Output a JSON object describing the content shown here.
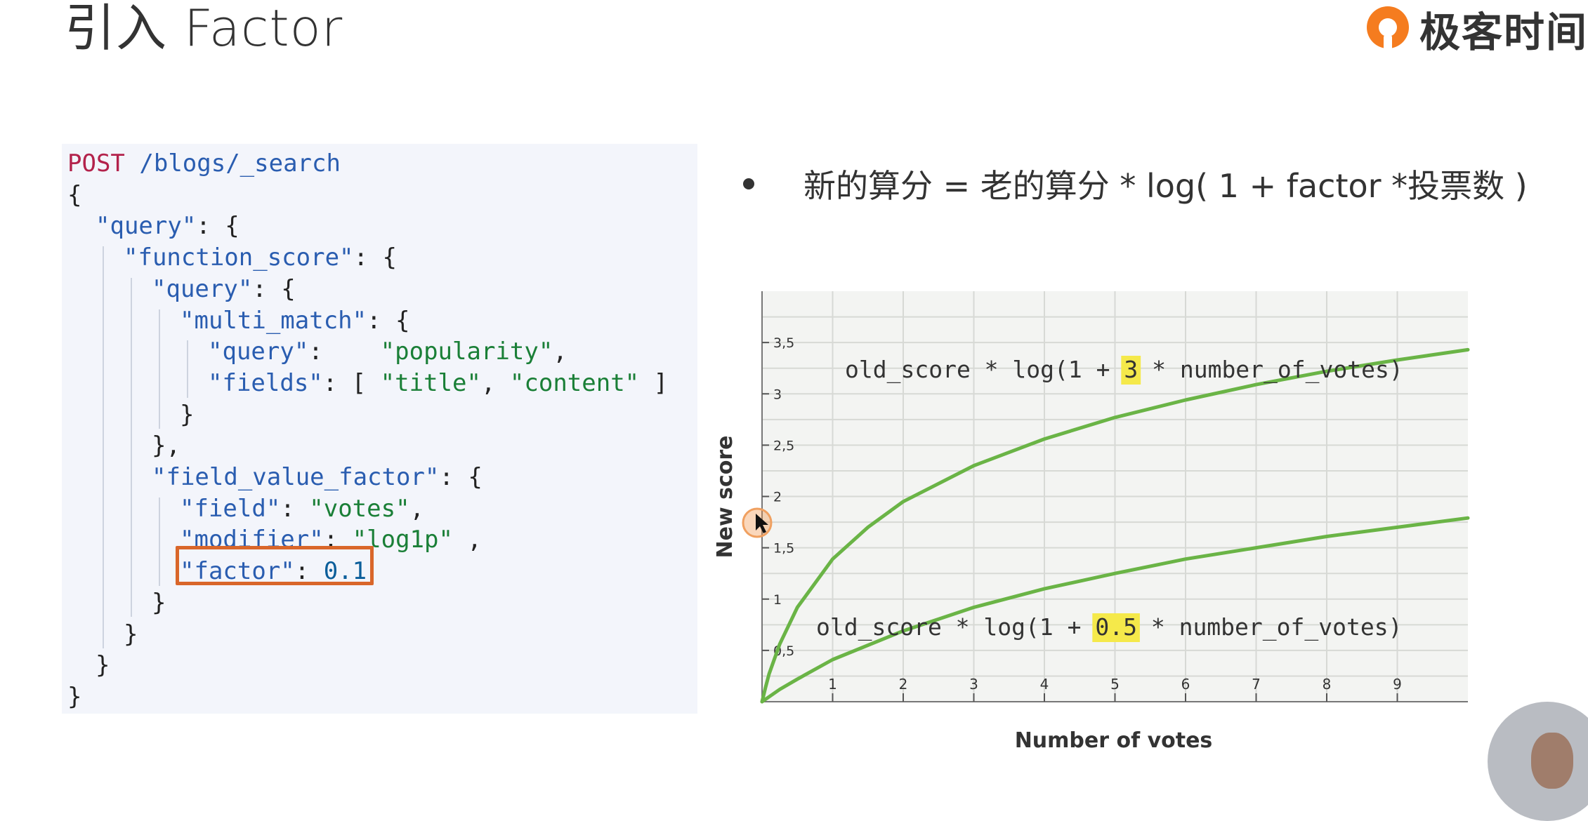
{
  "slide": {
    "title": "引入 Factor"
  },
  "brand": {
    "name": "极客时间",
    "logo_icon": "geektime-logo-icon",
    "color": "#f57c1f"
  },
  "code": {
    "lines": [
      {
        "indent": 0,
        "tokens": [
          {
            "t": "method",
            "v": "POST"
          },
          {
            "t": "plain",
            "v": " "
          },
          {
            "t": "path",
            "v": "/blogs/_search"
          }
        ]
      },
      {
        "indent": 0,
        "tokens": [
          {
            "t": "plain",
            "v": "{"
          }
        ]
      },
      {
        "indent": 1,
        "tokens": [
          {
            "t": "key",
            "v": "\"query\""
          },
          {
            "t": "plain",
            "v": ": {"
          }
        ]
      },
      {
        "indent": 2,
        "tokens": [
          {
            "t": "key",
            "v": "\"function_score\""
          },
          {
            "t": "plain",
            "v": ": {"
          }
        ]
      },
      {
        "indent": 3,
        "tokens": [
          {
            "t": "key",
            "v": "\"query\""
          },
          {
            "t": "plain",
            "v": ": {"
          }
        ]
      },
      {
        "indent": 4,
        "tokens": [
          {
            "t": "key",
            "v": "\"multi_match\""
          },
          {
            "t": "plain",
            "v": ": {"
          }
        ]
      },
      {
        "indent": 5,
        "tokens": [
          {
            "t": "key",
            "v": "\"query\""
          },
          {
            "t": "plain",
            "v": ":    "
          },
          {
            "t": "str",
            "v": "\"popularity\""
          },
          {
            "t": "plain",
            "v": ","
          }
        ]
      },
      {
        "indent": 5,
        "tokens": [
          {
            "t": "key",
            "v": "\"fields\""
          },
          {
            "t": "plain",
            "v": ": [ "
          },
          {
            "t": "str",
            "v": "\"title\""
          },
          {
            "t": "plain",
            "v": ", "
          },
          {
            "t": "str",
            "v": "\"content\""
          },
          {
            "t": "plain",
            "v": " ]"
          }
        ]
      },
      {
        "indent": 4,
        "tokens": [
          {
            "t": "plain",
            "v": "}"
          }
        ]
      },
      {
        "indent": 3,
        "tokens": [
          {
            "t": "plain",
            "v": "},"
          }
        ]
      },
      {
        "indent": 3,
        "tokens": [
          {
            "t": "key",
            "v": "\"field_value_factor\""
          },
          {
            "t": "plain",
            "v": ": {"
          }
        ]
      },
      {
        "indent": 4,
        "tokens": [
          {
            "t": "key",
            "v": "\"field\""
          },
          {
            "t": "plain",
            "v": ": "
          },
          {
            "t": "str",
            "v": "\"votes\""
          },
          {
            "t": "plain",
            "v": ","
          }
        ]
      },
      {
        "indent": 4,
        "tokens": [
          {
            "t": "key",
            "v": "\"modifier\""
          },
          {
            "t": "plain",
            "v": ": "
          },
          {
            "t": "str",
            "v": "\"log1p\""
          },
          {
            "t": "plain",
            "v": " ,"
          }
        ]
      },
      {
        "indent": 4,
        "tokens": [
          {
            "t": "key",
            "v": "\"factor\""
          },
          {
            "t": "plain",
            "v": ": "
          },
          {
            "t": "num",
            "v": "0.1"
          }
        ]
      },
      {
        "indent": 3,
        "tokens": [
          {
            "t": "plain",
            "v": "}"
          }
        ]
      },
      {
        "indent": 2,
        "tokens": [
          {
            "t": "plain",
            "v": "}"
          }
        ]
      },
      {
        "indent": 1,
        "tokens": [
          {
            "t": "plain",
            "v": "}"
          }
        ]
      },
      {
        "indent": 0,
        "tokens": [
          {
            "t": "plain",
            "v": "}"
          }
        ]
      }
    ],
    "highlight_color": "#d9662a"
  },
  "formula": {
    "text": "新的算分 = 老的算分 * log( 1 + factor *投票数 )"
  },
  "chart_data": {
    "type": "line",
    "xlabel": "Number of votes",
    "ylabel": "New score",
    "x_ticks": [
      "1",
      "2",
      "3",
      "4",
      "5",
      "6",
      "7",
      "8",
      "9"
    ],
    "y_ticks": [
      "0,5",
      "1",
      "1,5",
      "2",
      "2,5",
      "3",
      "3,5"
    ],
    "xlim": [
      0,
      10
    ],
    "ylim": [
      0,
      4
    ],
    "grid": true,
    "background": "#f3f4f2",
    "line_color": "#6ab446",
    "highlight_color": "#f5e94a",
    "series": [
      {
        "factor": 3,
        "label_parts": [
          "old_score * log(1 + ",
          "3",
          " * number_of_votes)"
        ],
        "x": [
          0,
          0.05,
          0.1,
          0.25,
          0.5,
          1,
          1.5,
          2,
          3,
          4,
          5,
          6,
          7,
          8,
          9,
          10
        ],
        "y": [
          0,
          0.14,
          0.27,
          0.56,
          0.92,
          1.39,
          1.7,
          1.95,
          2.3,
          2.56,
          2.77,
          2.94,
          3.09,
          3.22,
          3.33,
          3.43
        ]
      },
      {
        "factor": 0.5,
        "label_parts": [
          "old_score * log(1 + ",
          "0.5",
          " * number_of_votes)"
        ],
        "x": [
          0,
          0.25,
          0.5,
          1,
          2,
          3,
          4,
          5,
          6,
          7,
          8,
          9,
          10
        ],
        "y": [
          0,
          0.12,
          0.22,
          0.41,
          0.69,
          0.92,
          1.1,
          1.25,
          1.39,
          1.5,
          1.61,
          1.7,
          1.79
        ]
      }
    ]
  }
}
